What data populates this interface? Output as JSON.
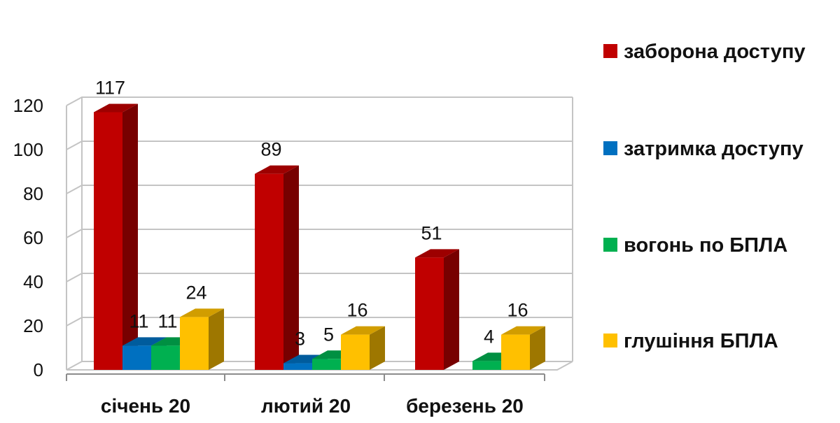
{
  "chart_data": {
    "type": "bar",
    "categories": [
      "січень 20",
      "лютий 20",
      "березень 20"
    ],
    "series": [
      {
        "name": "заборона доступу",
        "color": "#c00000",
        "values": [
          117,
          89,
          51
        ]
      },
      {
        "name": "затримка доступу",
        "color": "#0070c0",
        "values": [
          11,
          3,
          0
        ]
      },
      {
        "name": "вогонь по БПЛА",
        "color": "#00b050",
        "values": [
          11,
          5,
          4
        ]
      },
      {
        "name": "глушіння БПЛА",
        "color": "#ffc000",
        "values": [
          24,
          16,
          16
        ]
      }
    ],
    "data_labels": [
      [
        "117",
        "89",
        "51"
      ],
      [
        "11",
        "3",
        ""
      ],
      [
        "11",
        "5",
        "4"
      ],
      [
        "24",
        "16",
        "16"
      ]
    ],
    "y_ticks": [
      0,
      20,
      40,
      60,
      80,
      100,
      120
    ],
    "ylim": [
      0,
      120
    ],
    "grid": true,
    "legend_position": "right",
    "title": "",
    "xlabel": "",
    "ylabel": ""
  }
}
